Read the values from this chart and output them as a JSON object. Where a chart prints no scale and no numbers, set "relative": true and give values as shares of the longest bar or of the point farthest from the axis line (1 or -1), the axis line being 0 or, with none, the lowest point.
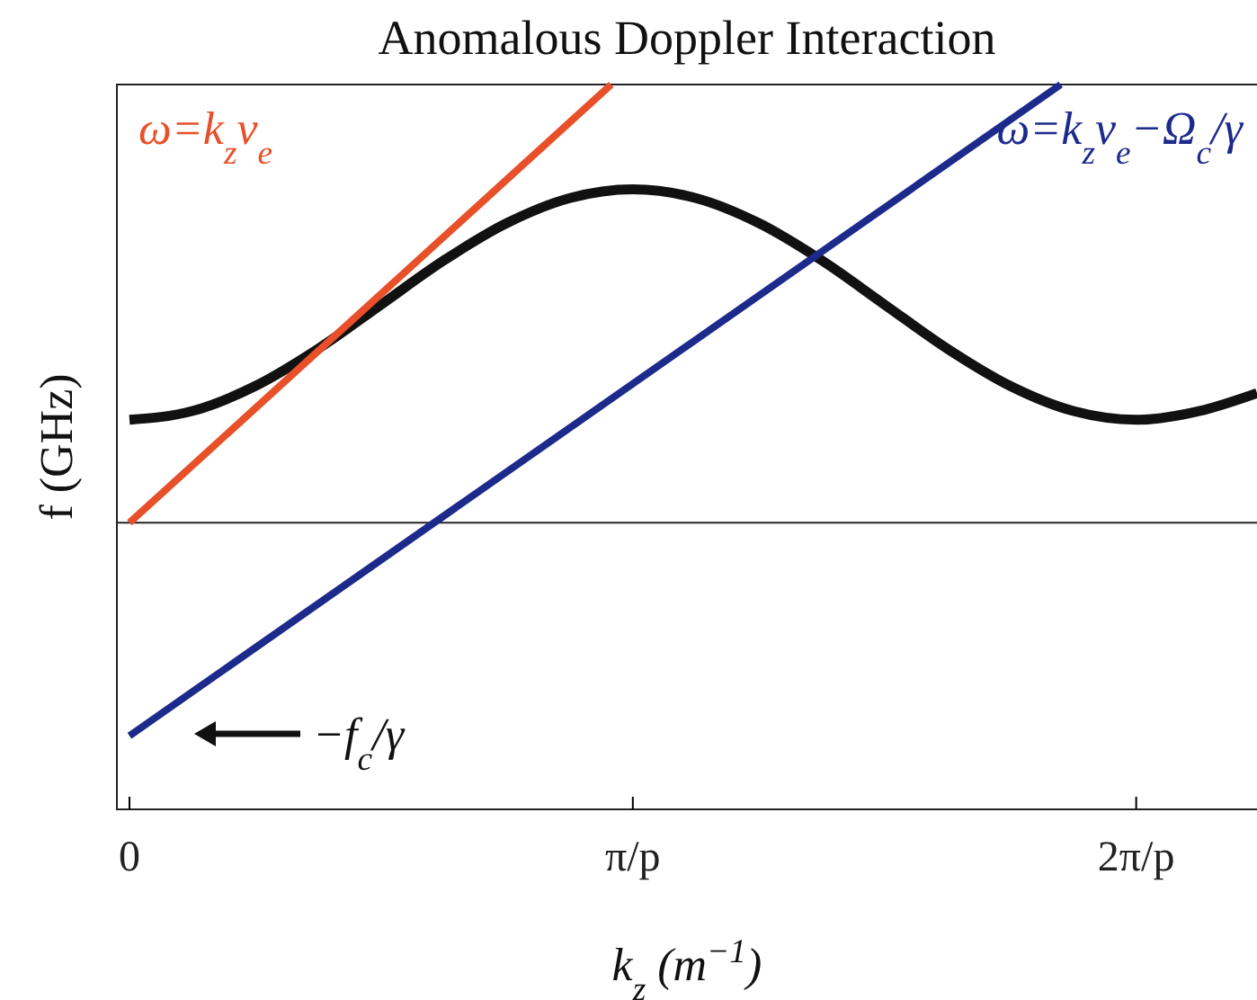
{
  "chart_data": {
    "type": "line",
    "title": "Anomalous Doppler Interaction",
    "xlabel": "k$_{z}$ (m$^{−1}$)",
    "ylabel": "f (GHz)",
    "relative": true,
    "xlim": [
      -0.025,
      2.24
    ],
    "xticks": [
      {
        "value": 0,
        "label": "0"
      },
      {
        "value": 1,
        "label": "π/p"
      },
      {
        "value": 2,
        "label": "2π/p"
      }
    ],
    "series": [
      {
        "color": "#111111",
        "x": [
          0,
          0.125,
          0.25,
          0.375,
          0.5,
          0.625,
          0.75,
          0.875,
          1,
          1.125,
          1.25,
          1.375,
          1.5,
          1.625,
          1.75,
          1.875,
          2,
          2.125,
          2.24
        ],
        "values": [
          0.235,
          0.255,
          0.312,
          0.397,
          0.498,
          0.599,
          0.684,
          0.741,
          0.761,
          0.741,
          0.684,
          0.599,
          0.498,
          0.397,
          0.312,
          0.255,
          0.235,
          0.255,
          0.296
        ]
      },
      {
        "name": "ω=k$_{z}$v$_{e}$",
        "color": "#e8502a",
        "x": [
          0,
          0.957
        ],
        "values": [
          0,
          1
        ]
      },
      {
        "name": "ω=k$_{z}$v$_{e}$−Ω$_{c}$/γ",
        "color": "#1c2a8c",
        "x": [
          0,
          1.85
        ],
        "values": [
          -0.486,
          1
        ]
      }
    ],
    "annotations": [
      "−f$_{c}$/γ"
    ],
    "grid": false,
    "legend": false
  }
}
